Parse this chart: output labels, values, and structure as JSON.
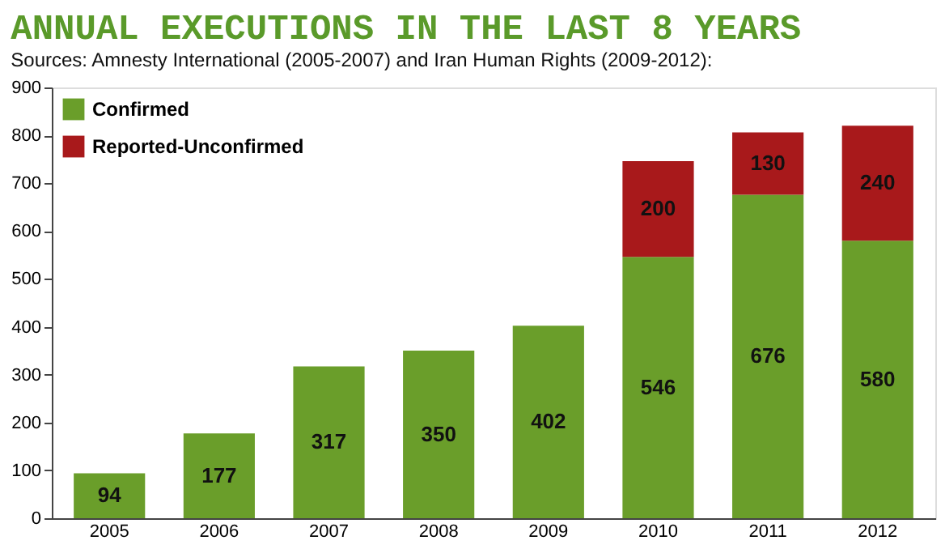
{
  "chart_data": {
    "type": "bar",
    "title": "ANNUAL EXECUTIONS IN THE LAST 8 YEARS",
    "subtitle": "Sources: Amnesty International (2005-2007) and Iran Human Rights (2009-2012):",
    "categories": [
      "2005",
      "2006",
      "2007",
      "2008",
      "2009",
      "2010",
      "2011",
      "2012"
    ],
    "series": [
      {
        "name": "Confirmed",
        "color": "#6a9e2a",
        "values": [
          94,
          177,
          317,
          350,
          402,
          546,
          676,
          580
        ]
      },
      {
        "name": "Reported-Unconfirmed",
        "color": "#a8191b",
        "values": [
          null,
          null,
          null,
          null,
          null,
          200,
          130,
          240
        ]
      }
    ],
    "stacked": true,
    "ylim": [
      0,
      900
    ],
    "yticks": [
      0,
      100,
      200,
      300,
      400,
      500,
      600,
      700,
      800,
      900
    ],
    "grid": false,
    "legend": "top left",
    "data_labels": true
  }
}
